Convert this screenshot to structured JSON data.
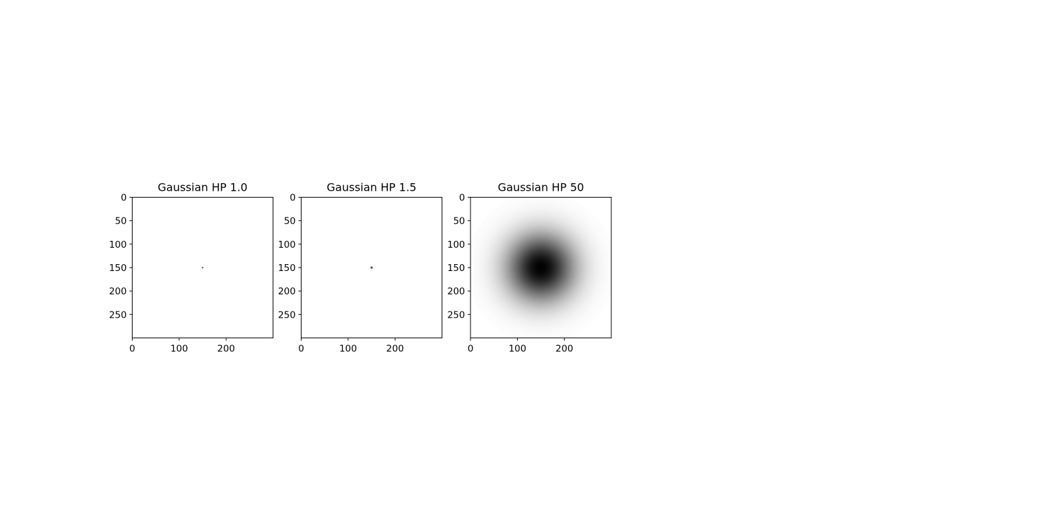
{
  "chart_data": [
    {
      "type": "heatmap",
      "title": "Gaussian HP 1.0",
      "colormap": "gray",
      "xlim": [
        0,
        300
      ],
      "ylim": [
        300,
        0
      ],
      "image_size": 300,
      "center": [
        150,
        150
      ],
      "dark_radius": 1.0,
      "xticks": [
        0,
        100,
        200
      ],
      "yticks": [
        0,
        50,
        100,
        150,
        200,
        250
      ]
    },
    {
      "type": "heatmap",
      "title": "Gaussian HP 1.5",
      "colormap": "gray",
      "xlim": [
        0,
        300
      ],
      "ylim": [
        300,
        0
      ],
      "image_size": 300,
      "center": [
        150,
        150
      ],
      "dark_radius": 1.5,
      "xticks": [
        0,
        100,
        200
      ],
      "yticks": [
        0,
        50,
        100,
        150,
        200,
        250
      ]
    },
    {
      "type": "heatmap",
      "title": "Gaussian HP 50",
      "colormap": "gray",
      "xlim": [
        0,
        300
      ],
      "ylim": [
        300,
        0
      ],
      "image_size": 300,
      "center": [
        150,
        150
      ],
      "dark_radius": 50,
      "xticks": [
        0,
        100,
        200
      ],
      "yticks": [
        0,
        50,
        100,
        150,
        200,
        250
      ]
    }
  ]
}
